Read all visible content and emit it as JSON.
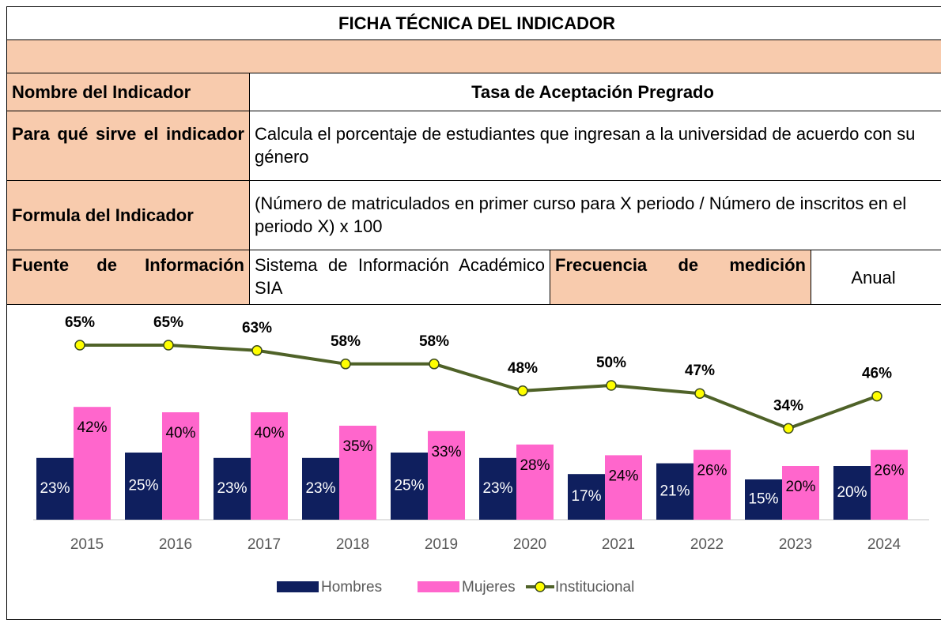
{
  "header": {
    "title": "FICHA TÉCNICA DEL INDICADOR"
  },
  "table": {
    "rows": [
      [
        "Nombre del Indicador",
        "Tasa de Aceptación Pregrado"
      ],
      [
        "Para qué sirve el indicador",
        "Calcula el porcentaje de estudiantes que ingresan a la universidad de acuerdo con su género"
      ],
      [
        "Formula del Indicador",
        "(Número de matriculados en primer curso para X periodo / Número de inscritos en el periodo X) x 100"
      ],
      [
        "Fuente de Información",
        "Sistema de Información Académico SIA",
        "Frecuencia de medición",
        "Anual"
      ]
    ]
  },
  "chart_data": {
    "type": "bar",
    "categories": [
      "2015",
      "2016",
      "2017",
      "2018",
      "2019",
      "2020",
      "2021",
      "2022",
      "2023",
      "2024"
    ],
    "series": [
      {
        "name": "Hombres",
        "color": "#0f1f5e",
        "values": [
          23,
          25,
          23,
          23,
          25,
          23,
          17,
          21,
          15,
          20
        ],
        "value_labels": [
          "23%",
          "25%",
          "23%",
          "23%",
          "25%",
          "23%",
          "17%",
          "21%",
          "15%",
          "20%"
        ]
      },
      {
        "name": "Mujeres",
        "color": "#ff66cc",
        "values": [
          42,
          40,
          40,
          35,
          33,
          28,
          24,
          26,
          20,
          26
        ],
        "value_labels": [
          "42%",
          "40%",
          "40%",
          "35%",
          "33%",
          "28%",
          "24%",
          "26%",
          "20%",
          "26%"
        ]
      },
      {
        "name": "Institucional",
        "type": "line",
        "color": "#4f6228",
        "marker_color": "#ffff00",
        "values": [
          65,
          65,
          63,
          58,
          58,
          48,
          50,
          47,
          34,
          46
        ],
        "value_labels": [
          "65%",
          "65%",
          "63%",
          "58%",
          "58%",
          "48%",
          "50%",
          "47%",
          "34%",
          "46%"
        ]
      }
    ]
  }
}
